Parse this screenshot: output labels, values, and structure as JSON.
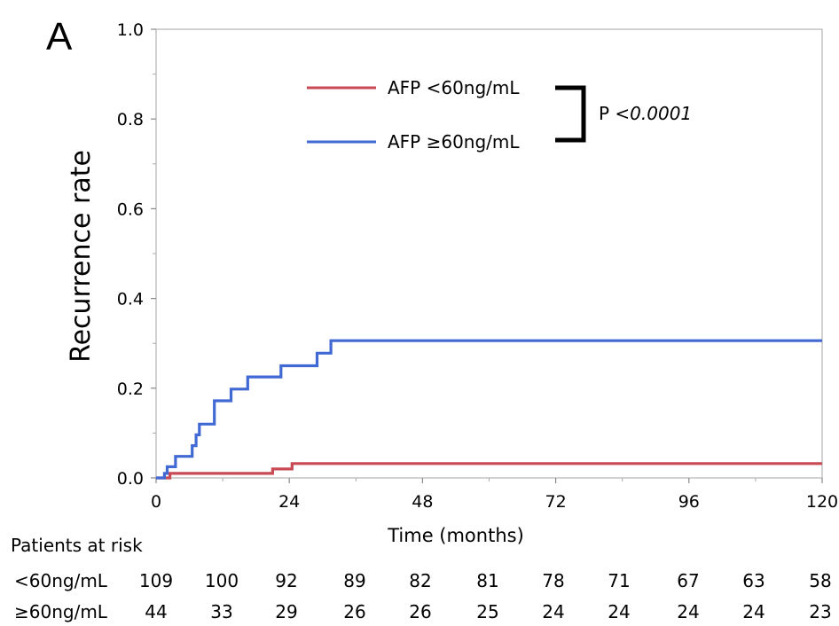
{
  "panel_label": "A",
  "chart_data": {
    "type": "line",
    "xlabel": "Time (months)",
    "ylabel": "Recurrence rate",
    "xlim": [
      0,
      120
    ],
    "ylim": [
      0,
      1.0
    ],
    "x_ticks": [
      0,
      24,
      48,
      72,
      96,
      120
    ],
    "x_tick_labels": [
      "0",
      "24",
      "48",
      "72",
      "96",
      "120"
    ],
    "y_ticks": [
      0,
      0.2,
      0.4,
      0.6,
      0.8,
      1.0
    ],
    "y_tick_labels": [
      "0.0",
      "0.2",
      "0.4",
      "0.6",
      "0.8",
      "1.0"
    ],
    "grid": false,
    "legend_placement": "top-center",
    "step": true,
    "series": [
      {
        "name": "AFP <60ng/mL",
        "color": "#c84a55",
        "points": [
          [
            0,
            0
          ],
          [
            2.5,
            0
          ],
          [
            2.5,
            0.01
          ],
          [
            21,
            0.01
          ],
          [
            21,
            0.02
          ],
          [
            24.5,
            0.02
          ],
          [
            24.5,
            0.032
          ],
          [
            120,
            0.032
          ]
        ]
      },
      {
        "name": "AFP ≥60ng/mL",
        "color": "#4169d4",
        "points": [
          [
            0,
            0
          ],
          [
            1.5,
            0
          ],
          [
            1.5,
            0.01
          ],
          [
            2,
            0.01
          ],
          [
            2,
            0.025
          ],
          [
            3.5,
            0.025
          ],
          [
            3.5,
            0.048
          ],
          [
            6.5,
            0.048
          ],
          [
            6.5,
            0.072
          ],
          [
            7.2,
            0.072
          ],
          [
            7.2,
            0.096
          ],
          [
            7.8,
            0.096
          ],
          [
            7.8,
            0.12
          ],
          [
            10.5,
            0.12
          ],
          [
            10.5,
            0.172
          ],
          [
            13.5,
            0.172
          ],
          [
            13.5,
            0.198
          ],
          [
            16.5,
            0.198
          ],
          [
            16.5,
            0.225
          ],
          [
            22.5,
            0.225
          ],
          [
            22.5,
            0.25
          ],
          [
            29,
            0.25
          ],
          [
            29,
            0.278
          ],
          [
            31.5,
            0.278
          ],
          [
            31.5,
            0.306
          ],
          [
            120,
            0.306
          ]
        ]
      }
    ],
    "annotation": {
      "prefix": "P ",
      "value": "<0.0001"
    },
    "risk_table": {
      "title": "Patients at risk",
      "rows": [
        {
          "label": "<60ng/mL",
          "values": [
            "109",
            "100",
            "92",
            "89",
            "82",
            "81",
            "78",
            "71",
            "67",
            "63",
            "58"
          ]
        },
        {
          "label": "≥60ng/mL",
          "values": [
            "44",
            "33",
            "29",
            "26",
            "26",
            "25",
            "24",
            "24",
            "24",
            "24",
            "23"
          ]
        }
      ]
    }
  }
}
